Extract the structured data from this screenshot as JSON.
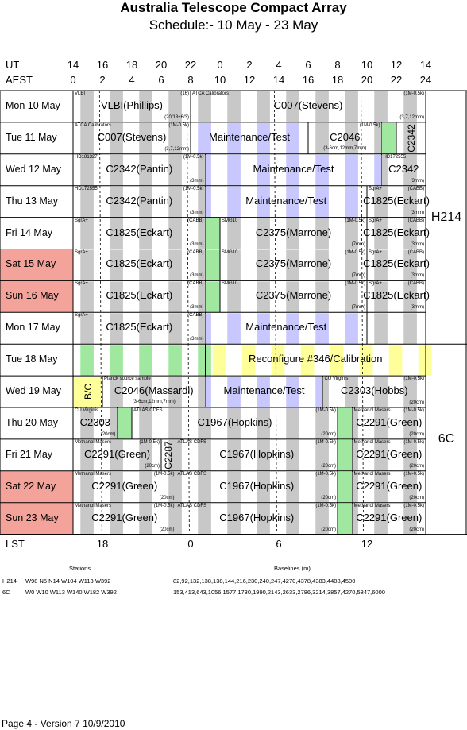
{
  "title": "Australia Telescope Compact Array",
  "subtitle": "Schedule:- 10 May - 23 May",
  "axes": {
    "ut_label": "UT",
    "aest_label": "AEST",
    "ut_ticks": [
      "14",
      "16",
      "18",
      "20",
      "22",
      "0",
      "2",
      "4",
      "6",
      "8",
      "10",
      "12",
      "14"
    ],
    "aest_ticks": [
      "0",
      "2",
      "4",
      "6",
      "8",
      "10",
      "12",
      "14",
      "16",
      "18",
      "20",
      "22",
      "24"
    ],
    "lst_label": "LST",
    "lst_ticks": [
      {
        "label": "18",
        "hour": 2
      },
      {
        "label": "0",
        "hour": 8
      },
      {
        "label": "6",
        "hour": 14
      },
      {
        "label": "12",
        "hour": 20
      }
    ]
  },
  "colors": {
    "grid": "#000000",
    "stripe": "#c8c8c8",
    "maint": "#c8c8ff",
    "green": "#a0e8a0",
    "yellow": "#ffff9a",
    "weekend": "#f4a39a"
  },
  "configs": [
    {
      "label": "H214",
      "row_start": 0,
      "row_end": 8
    },
    {
      "label": "6C",
      "row_start": 8,
      "row_end": 14
    }
  ],
  "stations": {
    "header": "Stations",
    "baselines_header": "Baselines (m)",
    "rows": [
      {
        "config": "H214",
        "stations": "W98 N5 N14 W104 W113 W392",
        "baselines": "82,92,132,138,138,144,216,230,240,247,4270,4378,4383,4408,4500"
      },
      {
        "config": "6C",
        "stations": "W0 W10 W113 W140 W182 W392",
        "baselines": "153,413,643,1056,1577,1730,1990,2143,2633,2786,3214,3857,4270,5847,6000"
      }
    ]
  },
  "footer": "Page 4 - Version 7  10/9/2010",
  "days": [
    {
      "label": "Mon 10 May",
      "weekend": false,
      "blocks": [
        {
          "s": 0,
          "e": 8,
          "bg": "stripe",
          "big": "VLBI(Phillips)",
          "tl": "VLBI",
          "tr": "(16)",
          "br": "(20/13+6/3)"
        },
        {
          "s": 8,
          "e": 24,
          "bg": "stripe",
          "big": "C007(Stevens)",
          "tl": "ATCA Calibrators",
          "tr": "(1M-0.5k)",
          "br": "(3,7,12mm)"
        }
      ]
    },
    {
      "label": "Tue  11 May",
      "weekend": false,
      "blocks": [
        {
          "s": 0,
          "e": 8,
          "bg": "stripe",
          "big": "C007(Stevens)",
          "tl": "ATCA Calibrators",
          "tr": "(1M-0.5k)",
          "br": "(3,7,12mm)"
        },
        {
          "s": 8,
          "e": 16,
          "bg": "maint",
          "big": "Maintenance/Test"
        },
        {
          "s": 16,
          "e": 21,
          "bg": "stripe",
          "big": "C2046",
          "tr": "(1M-0.5k)",
          "sub": "(3-6cm,12mm,7mm)"
        },
        {
          "s": 21,
          "e": 22,
          "bg": "green"
        },
        {
          "s": 22,
          "e": 24,
          "bg": "stripe",
          "vert": "C2342"
        }
      ]
    },
    {
      "label": "Wed 12 May",
      "weekend": false,
      "blocks": [
        {
          "s": 0,
          "e": 9,
          "bg": "stripe",
          "big": "C2342(Pantin)",
          "tl": "HD181327",
          "tr": "(1M-0.5k)",
          "br": "(3mm)"
        },
        {
          "s": 9,
          "e": 21,
          "bg": "maint",
          "big": "Maintenance/Test"
        },
        {
          "s": 21,
          "e": 24,
          "bg": "stripe",
          "big": "C2342",
          "tl": "HD172555",
          "br": "(3mm)"
        }
      ]
    },
    {
      "label": "Thu  13 May",
      "weekend": false,
      "blocks": [
        {
          "s": 0,
          "e": 9,
          "bg": "stripe",
          "big": "C2342(Pantin)",
          "tl": "HD172555",
          "tr": "(1M-0.5k)",
          "br": "(3mm)"
        },
        {
          "s": 9,
          "e": 20,
          "bg": "maint",
          "big": "Maintenance/Test"
        },
        {
          "s": 20,
          "e": 24,
          "bg": "stripe",
          "big": "C1825(Eckart)",
          "tl": "SgrA+",
          "tr": "(CABB)",
          "br": "(3mm)"
        }
      ]
    },
    {
      "label": "Fri    14 May",
      "weekend": false,
      "blocks": [
        {
          "s": 0,
          "e": 9,
          "bg": "stripe",
          "big": "C1825(Eckart)",
          "tl": "SgrA+",
          "tr": "(CABB)",
          "br": "(3mm)"
        },
        {
          "s": 9,
          "e": 10,
          "bg": "green"
        },
        {
          "s": 10,
          "e": 20,
          "bg": "stripe",
          "big": "C2375(Marrone)",
          "tl": "SMG10",
          "tr": "(1M-0.5k)",
          "br": "(7mm)"
        },
        {
          "s": 20,
          "e": 24,
          "bg": "stripe",
          "big": "C1825(Eckart)",
          "tl": "SgrA+",
          "tr": "(CABB)",
          "br": "(3mm)"
        }
      ]
    },
    {
      "label": "Sat   15 May",
      "weekend": true,
      "blocks": [
        {
          "s": 0,
          "e": 9,
          "bg": "stripe",
          "big": "C1825(Eckart)",
          "tl": "SgrA+",
          "tr": "(CABB)",
          "br": "(3mm)"
        },
        {
          "s": 9,
          "e": 10,
          "bg": "green"
        },
        {
          "s": 10,
          "e": 20,
          "bg": "stripe",
          "big": "C2375(Marrone)",
          "tl": "SMG10",
          "tr": "(1M-0.5k)",
          "br": "(7mm)"
        },
        {
          "s": 20,
          "e": 24,
          "bg": "stripe",
          "big": "C1825(Eckart)",
          "tl": "SgrA+",
          "tr": "(CABB)",
          "br": "(3mm)"
        }
      ]
    },
    {
      "label": "Sun  16 May",
      "weekend": true,
      "blocks": [
        {
          "s": 0,
          "e": 9,
          "bg": "stripe",
          "big": "C1825(Eckart)",
          "tl": "SgrA+",
          "tr": "(CABB)",
          "br": "(3mm)"
        },
        {
          "s": 9,
          "e": 10,
          "bg": "green"
        },
        {
          "s": 10,
          "e": 20,
          "bg": "stripe",
          "big": "C2375(Marrone)",
          "tl": "SMG10",
          "tr": "(1M-0.5k)",
          "br": "(7mm)"
        },
        {
          "s": 20,
          "e": 24,
          "bg": "stripe",
          "big": "C1825(Eckart)",
          "tl": "SgrA+",
          "tr": "(CABB)",
          "br": "(3mm)"
        }
      ]
    },
    {
      "label": "Mon 17 May",
      "weekend": false,
      "blocks": [
        {
          "s": 0,
          "e": 9,
          "bg": "stripe",
          "big": "C1825(Eckart)",
          "tl": "SgrA+",
          "tr": "(CABB)",
          "br": "(3mm)"
        },
        {
          "s": 9,
          "e": 20,
          "bg": "maint",
          "big": "Maintenance/Test"
        },
        {
          "s": 20,
          "e": 24,
          "bg": "stripe"
        }
      ]
    },
    {
      "label": "Tue   18 May",
      "weekend": false,
      "blocks": [
        {
          "s": 0,
          "e": 9,
          "bg": "stripe2"
        },
        {
          "s": 9,
          "e": 24,
          "bg": "yellow2",
          "big": "Reconfigure #346/Calibration"
        }
      ]
    },
    {
      "label": "Wed 19 May",
      "weekend": false,
      "blocks": [
        {
          "s": 0,
          "e": 2,
          "bg": "yellowbox",
          "vert": "B/C"
        },
        {
          "s": 2,
          "e": 9,
          "bg": "stripe",
          "big": "C2046(Massardi)",
          "tl": "Planck source sample",
          "sub": "(3-6cm,12mm,7mm)"
        },
        {
          "s": 9,
          "e": 17,
          "bg": "maint",
          "big": "Maintenance/Test"
        },
        {
          "s": 17,
          "e": 24,
          "bg": "stripe",
          "big": "C2303(Hobbs)",
          "tl": "CU Virginis",
          "tr": "(1M-0.5k)",
          "br": "(20cm)"
        }
      ]
    },
    {
      "label": "Thu  20 May",
      "weekend": false,
      "blocks": [
        {
          "s": 0,
          "e": 3,
          "bg": "stripe",
          "big": "C2303",
          "tl": "CU Virginis",
          "br": "(20cm)"
        },
        {
          "s": 3,
          "e": 4,
          "bg": "green"
        },
        {
          "s": 4,
          "e": 18,
          "bg": "stripe",
          "big": "C1967(Hopkins)",
          "tl": "ATLAS CDFS",
          "tr": "(1M-0.5k)",
          "br": "(20cm)"
        },
        {
          "s": 18,
          "e": 19,
          "bg": "green"
        },
        {
          "s": 19,
          "e": 24,
          "bg": "stripe",
          "big": "C2291(Green)",
          "tl": "Methanol Masers",
          "tr": "(1M-0.5k)",
          "br": "(20cm)"
        }
      ]
    },
    {
      "label": "Fri    21 May",
      "weekend": false,
      "blocks": [
        {
          "s": 0,
          "e": 6,
          "bg": "stripe",
          "big": "C2291(Green)",
          "tl": "Methanol Masers",
          "tr": "(1M-0.5k)",
          "br": "(20cm)"
        },
        {
          "s": 6,
          "e": 7,
          "bg": "stripe",
          "vert": "C2287"
        },
        {
          "s": 7,
          "e": 18,
          "bg": "stripe",
          "big": "C1967(Hopkins)",
          "tl": "ATLAS CDFS",
          "tr": "(1M-0.5k)",
          "br": "(20cm)"
        },
        {
          "s": 18,
          "e": 19,
          "bg": "green"
        },
        {
          "s": 19,
          "e": 24,
          "bg": "stripe",
          "big": "C2291(Green)",
          "tl": "Methanol Masers",
          "tr": "(1M-0.5k)",
          "br": "(20cm)"
        }
      ]
    },
    {
      "label": "Sat   22 May",
      "weekend": true,
      "blocks": [
        {
          "s": 0,
          "e": 7,
          "bg": "stripe",
          "big": "C2291(Green)",
          "tl": "Methanol Masers",
          "tr": "(1M-0.5k)",
          "br": "(20cm)"
        },
        {
          "s": 7,
          "e": 18,
          "bg": "stripe",
          "big": "C1967(Hopkins)",
          "tl": "ATLAS CDFS",
          "tr": "(1M-0.5k)",
          "br": "(20cm)"
        },
        {
          "s": 18,
          "e": 19,
          "bg": "green"
        },
        {
          "s": 19,
          "e": 24,
          "bg": "stripe",
          "big": "C2291(Green)",
          "tl": "Methanol Masers",
          "tr": "(1M-0.5k)",
          "br": "(20cm)"
        }
      ]
    },
    {
      "label": "Sun  23 May",
      "weekend": true,
      "blocks": [
        {
          "s": 0,
          "e": 7,
          "bg": "stripe",
          "big": "C2291(Green)",
          "tl": "Methanol Masers",
          "tr": "(1M-0.5k)",
          "br": "(20cm)"
        },
        {
          "s": 7,
          "e": 18,
          "bg": "stripe",
          "big": "C1967(Hopkins)",
          "tl": "ATLAS CDFS",
          "tr": "(1M-0.5k)",
          "br": "(20cm)"
        },
        {
          "s": 18,
          "e": 19,
          "bg": "green"
        },
        {
          "s": 19,
          "e": 24,
          "bg": "stripe",
          "big": "C2291(Green)",
          "tl": "Methanol Masers",
          "tr": "(1M-0.5k)",
          "br": "(20cm)"
        }
      ]
    }
  ]
}
